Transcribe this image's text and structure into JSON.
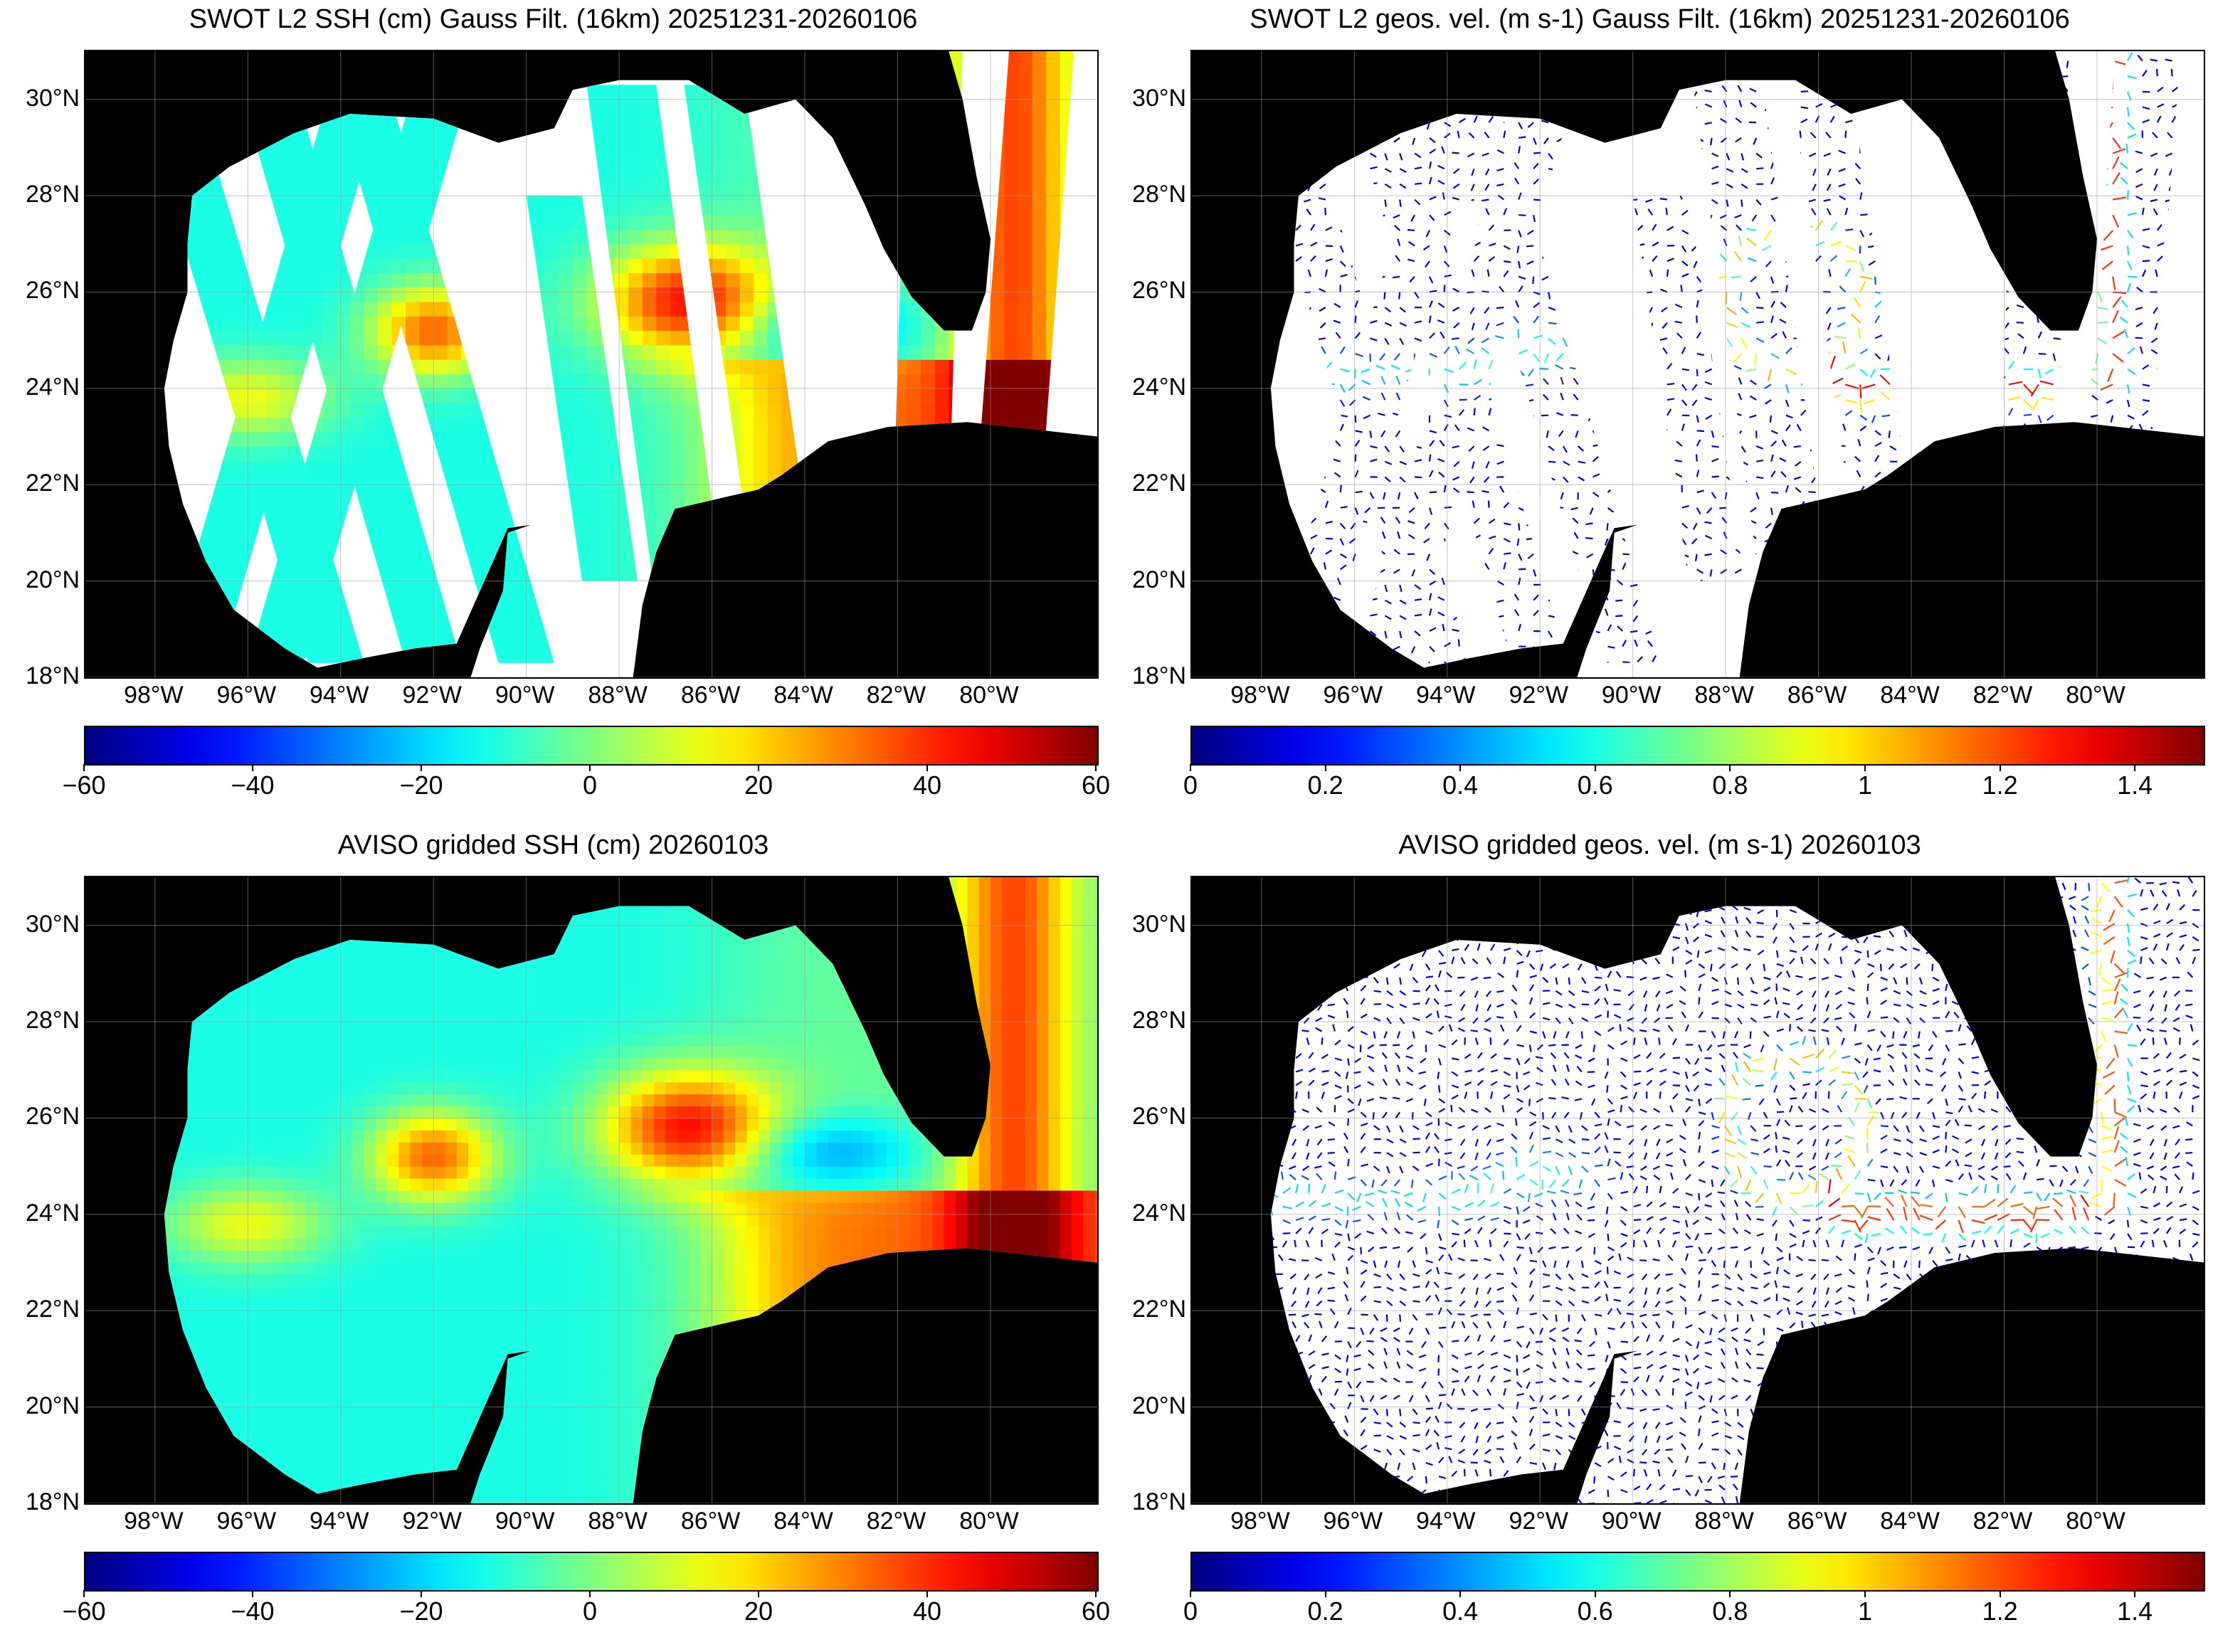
{
  "panels": [
    {
      "id": "swot-ssh",
      "title": "SWOT L2 SSH (cm) Gauss Filt. (16km) 20251231-20260106",
      "kind": "swath-ssh",
      "colorbar": {
        "ticks": [
          "−60",
          "−40",
          "−20",
          "0",
          "20",
          "40",
          "60"
        ],
        "range": [
          -60,
          60
        ]
      }
    },
    {
      "id": "swot-vel",
      "title": "SWOT L2 geos. vel. (m s-1) Gauss Filt. (16km) 20251231-20260106",
      "kind": "swath-vel",
      "colorbar": {
        "ticks": [
          "0",
          "0.2",
          "0.4",
          "0.6",
          "0.8",
          "1",
          "1.2",
          "1.4"
        ],
        "range": [
          0,
          1.5
        ]
      }
    },
    {
      "id": "aviso-ssh",
      "title": "AVISO gridded SSH (cm) 20260103",
      "kind": "grid-ssh",
      "colorbar": {
        "ticks": [
          "−60",
          "−40",
          "−20",
          "0",
          "20",
          "40",
          "60"
        ],
        "range": [
          -60,
          60
        ]
      }
    },
    {
      "id": "aviso-vel",
      "title": "AVISO gridded geos. vel. (m s-1)  20260103",
      "kind": "grid-vel",
      "colorbar": {
        "ticks": [
          "0",
          "0.2",
          "0.4",
          "0.6",
          "0.8",
          "1",
          "1.2",
          "1.4"
        ],
        "range": [
          0,
          1.5
        ]
      }
    }
  ],
  "map_extent": {
    "lon": [
      -99.5,
      -77.7
    ],
    "lat": [
      18,
      31
    ]
  },
  "lat_labels": [
    "30°N",
    "28°N",
    "26°N",
    "24°N",
    "22°N",
    "20°N",
    "18°N"
  ],
  "lat_values": [
    30,
    28,
    26,
    24,
    22,
    20,
    18
  ],
  "lon_labels": [
    "98°W",
    "96°W",
    "94°W",
    "92°W",
    "90°W",
    "88°W",
    "86°W",
    "84°W",
    "82°W",
    "80°W"
  ],
  "lon_values": [
    -98,
    -96,
    -94,
    -92,
    -90,
    -88,
    -86,
    -84,
    -82,
    -80
  ],
  "colors": {
    "land": "#000000",
    "no_data": "#ffffff",
    "grid": "#999999",
    "colormap": "jet"
  }
}
